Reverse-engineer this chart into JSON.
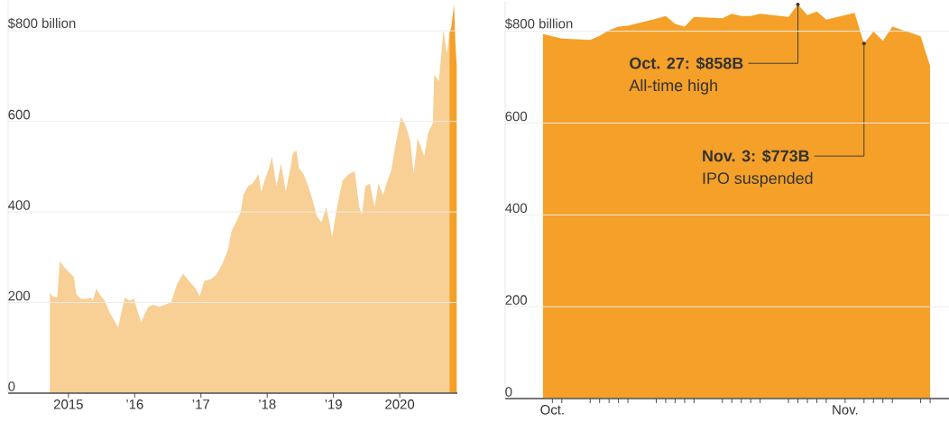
{
  "chart_data": [
    {
      "type": "area",
      "xlim": [
        2014.09,
        2020.87
      ],
      "ylim": [
        0,
        866
      ],
      "grid": "y",
      "xticks": [
        {
          "value": 2015,
          "label": "2015"
        },
        {
          "value": 2016,
          "label": "’16"
        },
        {
          "value": 2017,
          "label": "’17"
        },
        {
          "value": 2018,
          "label": "’18"
        },
        {
          "value": 2019,
          "label": "’19"
        },
        {
          "value": 2020,
          "label": "2020"
        }
      ],
      "yticks": [
        0,
        200,
        400,
        600,
        {
          "value": 800,
          "label": "$800 billion"
        }
      ],
      "series": [
        {
          "color": "#f8cf94",
          "x": [
            2014.72,
            2014.76,
            2014.83,
            2014.87,
            2014.94,
            2015.03,
            2015.08,
            2015.12,
            2015.19,
            2015.28,
            2015.33,
            2015.37,
            2015.42,
            2015.49,
            2015.55,
            2015.62,
            2015.69,
            2015.75,
            2015.8,
            2015.85,
            2015.92,
            2015.99,
            2016.05,
            2016.1,
            2016.14,
            2016.21,
            2016.28,
            2016.37,
            2016.46,
            2016.55,
            2016.64,
            2016.73,
            2016.82,
            2016.92,
            2016.98,
            2017.05,
            2017.14,
            2017.23,
            2017.32,
            2017.41,
            2017.46,
            2017.53,
            2017.6,
            2017.64,
            2017.71,
            2017.78,
            2017.87,
            2017.91,
            2017.96,
            2018.03,
            2018.07,
            2018.14,
            2018.21,
            2018.28,
            2018.35,
            2018.39,
            2018.44,
            2018.48,
            2018.55,
            2018.62,
            2018.69,
            2018.75,
            2018.82,
            2018.89,
            2018.94,
            2018.98,
            2019.03,
            2019.09,
            2019.14,
            2019.23,
            2019.32,
            2019.39,
            2019.43,
            2019.48,
            2019.55,
            2019.62,
            2019.68,
            2019.75,
            2019.8,
            2019.87,
            2019.93,
            2020.02,
            2020.09,
            2020.16,
            2020.21,
            2020.27,
            2020.32,
            2020.37,
            2020.43,
            2020.5,
            2020.52,
            2020.59,
            2020.66,
            2020.71,
            2020.75
          ],
          "values": [
            221,
            214,
            211,
            291,
            277,
            264,
            258,
            218,
            208,
            208,
            211,
            204,
            231,
            214,
            204,
            178,
            161,
            145,
            178,
            211,
            204,
            208,
            178,
            155,
            171,
            191,
            195,
            191,
            195,
            201,
            241,
            264,
            248,
            231,
            214,
            248,
            251,
            261,
            284,
            317,
            357,
            377,
            400,
            437,
            457,
            463,
            483,
            444,
            470,
            497,
            523,
            457,
            507,
            444,
            497,
            530,
            536,
            497,
            483,
            457,
            424,
            390,
            377,
            410,
            377,
            344,
            390,
            437,
            470,
            483,
            490,
            410,
            394,
            457,
            463,
            410,
            463,
            437,
            463,
            490,
            543,
            610,
            590,
            556,
            483,
            563,
            543,
            523,
            576,
            596,
            703,
            689,
            802,
            749,
            794
          ]
        },
        {
          "color": "#f5a028",
          "x": [
            2020.75,
            2020.78,
            2020.82,
            2020.84,
            2020.86
          ],
          "values": [
            794,
            810,
            858,
            773,
            722
          ]
        }
      ]
    },
    {
      "type": "area",
      "ylim": [
        0,
        866
      ],
      "grid": "y",
      "xlim": [
        "2020-09-26",
        "2020-11-12"
      ],
      "x": [
        "2020-09-30",
        "2020-10-01",
        "2020-10-02",
        "2020-10-05",
        "2020-10-06",
        "2020-10-07",
        "2020-10-08",
        "2020-10-09",
        "2020-10-12",
        "2020-10-13",
        "2020-10-14",
        "2020-10-15",
        "2020-10-16",
        "2020-10-19",
        "2020-10-20",
        "2020-10-21",
        "2020-10-22",
        "2020-10-23",
        "2020-10-26",
        "2020-10-27",
        "2020-10-28",
        "2020-10-29",
        "2020-10-30",
        "2020-11-02",
        "2020-11-03",
        "2020-11-04",
        "2020-11-05",
        "2020-11-06",
        "2020-11-09",
        "2020-11-10"
      ],
      "xticks": [
        {
          "value": "2020-10-01",
          "label": "Oct."
        },
        {
          "value": "2020-10-02",
          "label": null
        },
        {
          "value": "2020-10-05",
          "label": null
        },
        {
          "value": "2020-10-06",
          "label": null
        },
        {
          "value": "2020-10-07",
          "label": null
        },
        {
          "value": "2020-10-08",
          "label": null
        },
        {
          "value": "2020-10-09",
          "label": null
        },
        {
          "value": "2020-10-12",
          "label": null
        },
        {
          "value": "2020-10-13",
          "label": null
        },
        {
          "value": "2020-10-14",
          "label": null
        },
        {
          "value": "2020-10-15",
          "label": null
        },
        {
          "value": "2020-10-16",
          "label": null
        },
        {
          "value": "2020-10-19",
          "label": null
        },
        {
          "value": "2020-10-20",
          "label": null
        },
        {
          "value": "2020-10-21",
          "label": null
        },
        {
          "value": "2020-10-22",
          "label": null
        },
        {
          "value": "2020-10-23",
          "label": null
        },
        {
          "value": "2020-10-26",
          "label": null
        },
        {
          "value": "2020-10-27",
          "label": null
        },
        {
          "value": "2020-10-28",
          "label": null
        },
        {
          "value": "2020-10-29",
          "label": null
        },
        {
          "value": "2020-10-30",
          "label": null
        },
        {
          "value": "2020-11-01",
          "label": "Nov."
        },
        {
          "value": "2020-11-03",
          "label": null
        },
        {
          "value": "2020-11-04",
          "label": null
        },
        {
          "value": "2020-11-05",
          "label": null
        },
        {
          "value": "2020-11-06",
          "label": null
        },
        {
          "value": "2020-11-09",
          "label": null
        },
        {
          "value": "2020-11-10",
          "label": null
        }
      ],
      "yticks": [
        0,
        200,
        400,
        600,
        {
          "value": 800,
          "label": "$800 billion"
        }
      ],
      "series": [
        {
          "color": "#f5a028",
          "values": [
            794,
            789,
            784,
            781,
            790,
            802,
            810,
            812,
            827,
            833,
            816,
            810,
            831,
            828,
            838,
            833,
            833,
            838,
            831,
            858,
            835,
            843,
            825,
            840,
            773,
            799,
            779,
            810,
            789,
            724
          ]
        }
      ],
      "annotations": [
        {
          "text": "Oct. 27: $858B",
          "x": "2020-10-27",
          "y": 858
        },
        "All-time high",
        {
          "text": "Nov. 3: $773B",
          "x": "2020-11-03",
          "y": 773
        },
        "IPO suspended"
      ]
    }
  ]
}
